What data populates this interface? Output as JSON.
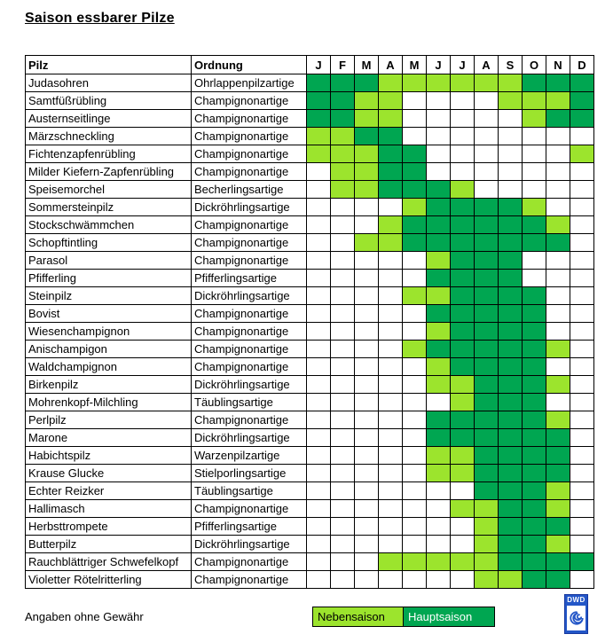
{
  "title": "Saison essbarer Pilze",
  "footer_note": "Angaben ohne Gewähr",
  "logo": {
    "label": "DWD",
    "icon": "spiral-icon"
  },
  "legend": {
    "nebensaison_label": "Nebensaison",
    "hauptsaison_label": "Hauptsaison"
  },
  "colors": {
    "nebensaison": "#9CE42D",
    "hauptsaison": "#00A651",
    "logo_blue": "#2356C7"
  },
  "chart_data": {
    "type": "heatmap",
    "title": "Saison essbarer Pilze",
    "col_headers": {
      "pilz": "Pilz",
      "ordnung": "Ordnung"
    },
    "x_labels": [
      "J",
      "F",
      "M",
      "A",
      "M",
      "J",
      "J",
      "A",
      "S",
      "O",
      "N",
      "D"
    ],
    "value_encoding": {
      "0": "keine Saison",
      "1": "Nebensaison",
      "2": "Hauptsaison"
    },
    "rows": [
      {
        "pilz": "Judasohren",
        "ordnung": "Ohrlappenpilzartige",
        "seasons": [
          2,
          2,
          2,
          1,
          1,
          1,
          1,
          1,
          1,
          2,
          2,
          2
        ]
      },
      {
        "pilz": "Samtfüßrübling",
        "ordnung": "Champignonartige",
        "seasons": [
          2,
          2,
          1,
          1,
          0,
          0,
          0,
          0,
          1,
          1,
          1,
          2
        ]
      },
      {
        "pilz": "Austernseitlinge",
        "ordnung": "Champignonartige",
        "seasons": [
          2,
          2,
          1,
          1,
          0,
          0,
          0,
          0,
          0,
          1,
          2,
          2
        ]
      },
      {
        "pilz": "Märzschneckling",
        "ordnung": "Champignonartige",
        "seasons": [
          1,
          1,
          2,
          2,
          0,
          0,
          0,
          0,
          0,
          0,
          0,
          0
        ]
      },
      {
        "pilz": "Fichtenzapfenrübling",
        "ordnung": "Champignonartige",
        "seasons": [
          1,
          1,
          1,
          2,
          2,
          0,
          0,
          0,
          0,
          0,
          0,
          1
        ]
      },
      {
        "pilz": "Milder Kiefern-Zapfenrübling",
        "ordnung": "Champignonartige",
        "seasons": [
          0,
          1,
          1,
          2,
          2,
          0,
          0,
          0,
          0,
          0,
          0,
          0
        ]
      },
      {
        "pilz": "Speisemorchel",
        "ordnung": "Becherlingsartige",
        "seasons": [
          0,
          1,
          1,
          2,
          2,
          2,
          1,
          0,
          0,
          0,
          0,
          0
        ]
      },
      {
        "pilz": "Sommersteinpilz",
        "ordnung": "Dickröhrlingsartige",
        "seasons": [
          0,
          0,
          0,
          0,
          1,
          2,
          2,
          2,
          2,
          1,
          0,
          0
        ]
      },
      {
        "pilz": "Stockschwämmchen",
        "ordnung": "Champignonartige",
        "seasons": [
          0,
          0,
          0,
          1,
          2,
          2,
          2,
          2,
          2,
          2,
          1,
          0
        ]
      },
      {
        "pilz": "Schopftintling",
        "ordnung": "Champignonartige",
        "seasons": [
          0,
          0,
          1,
          1,
          2,
          2,
          2,
          2,
          2,
          2,
          2,
          0
        ]
      },
      {
        "pilz": "Parasol",
        "ordnung": "Champignonartige",
        "seasons": [
          0,
          0,
          0,
          0,
          0,
          1,
          2,
          2,
          2,
          0,
          0,
          0
        ]
      },
      {
        "pilz": "Pfifferling",
        "ordnung": "Pfifferlingsartige",
        "seasons": [
          0,
          0,
          0,
          0,
          0,
          2,
          2,
          2,
          2,
          0,
          0,
          0
        ]
      },
      {
        "pilz": "Steinpilz",
        "ordnung": "Dickröhrlingsartige",
        "seasons": [
          0,
          0,
          0,
          0,
          1,
          1,
          2,
          2,
          2,
          2,
          0,
          0
        ]
      },
      {
        "pilz": "Bovist",
        "ordnung": "Champignonartige",
        "seasons": [
          0,
          0,
          0,
          0,
          0,
          2,
          2,
          2,
          2,
          2,
          0,
          0
        ]
      },
      {
        "pilz": "Wiesenchampignon",
        "ordnung": "Champignonartige",
        "seasons": [
          0,
          0,
          0,
          0,
          0,
          1,
          2,
          2,
          2,
          2,
          0,
          0
        ]
      },
      {
        "pilz": "Anischampigon",
        "ordnung": "Champignonartige",
        "seasons": [
          0,
          0,
          0,
          0,
          1,
          2,
          2,
          2,
          2,
          2,
          1,
          0
        ]
      },
      {
        "pilz": "Waldchampignon",
        "ordnung": "Champignonartige",
        "seasons": [
          0,
          0,
          0,
          0,
          0,
          1,
          2,
          2,
          2,
          2,
          0,
          0
        ]
      },
      {
        "pilz": "Birkenpilz",
        "ordnung": "Dickröhrlingsartige",
        "seasons": [
          0,
          0,
          0,
          0,
          0,
          1,
          1,
          2,
          2,
          2,
          1,
          0
        ]
      },
      {
        "pilz": "Mohrenkopf-Milchling",
        "ordnung": "Täublingsartige",
        "seasons": [
          0,
          0,
          0,
          0,
          0,
          0,
          1,
          2,
          2,
          2,
          0,
          0
        ]
      },
      {
        "pilz": "Perlpilz",
        "ordnung": "Champignonartige",
        "seasons": [
          0,
          0,
          0,
          0,
          0,
          2,
          2,
          2,
          2,
          2,
          1,
          0
        ]
      },
      {
        "pilz": "Marone",
        "ordnung": "Dickröhrlingsartige",
        "seasons": [
          0,
          0,
          0,
          0,
          0,
          2,
          2,
          2,
          2,
          2,
          2,
          0
        ]
      },
      {
        "pilz": "Habichtspilz",
        "ordnung": "Warzenpilzartige",
        "seasons": [
          0,
          0,
          0,
          0,
          0,
          1,
          1,
          2,
          2,
          2,
          2,
          0
        ]
      },
      {
        "pilz": "Krause Glucke",
        "ordnung": "Stielporlingsartige",
        "seasons": [
          0,
          0,
          0,
          0,
          0,
          1,
          1,
          2,
          2,
          2,
          2,
          0
        ]
      },
      {
        "pilz": "Echter Reizker",
        "ordnung": "Täublingsartige",
        "seasons": [
          0,
          0,
          0,
          0,
          0,
          0,
          0,
          2,
          2,
          2,
          1,
          0
        ]
      },
      {
        "pilz": "Hallimasch",
        "ordnung": "Champignonartige",
        "seasons": [
          0,
          0,
          0,
          0,
          0,
          0,
          1,
          1,
          2,
          2,
          1,
          0
        ]
      },
      {
        "pilz": "Herbsttrompete",
        "ordnung": "Pfifferlingsartige",
        "seasons": [
          0,
          0,
          0,
          0,
          0,
          0,
          0,
          1,
          2,
          2,
          2,
          0
        ]
      },
      {
        "pilz": "Butterpilz",
        "ordnung": "Dickröhrlingsartige",
        "seasons": [
          0,
          0,
          0,
          0,
          0,
          0,
          0,
          1,
          2,
          2,
          1,
          0
        ]
      },
      {
        "pilz": "Rauchblättriger Schwefelkopf",
        "ordnung": "Champignonartige",
        "seasons": [
          0,
          0,
          0,
          1,
          1,
          1,
          1,
          1,
          2,
          2,
          2,
          2
        ]
      },
      {
        "pilz": "Violetter Rötelritterling",
        "ordnung": "Champignonartige",
        "seasons": [
          0,
          0,
          0,
          0,
          0,
          0,
          0,
          1,
          1,
          2,
          2,
          0
        ]
      }
    ]
  }
}
